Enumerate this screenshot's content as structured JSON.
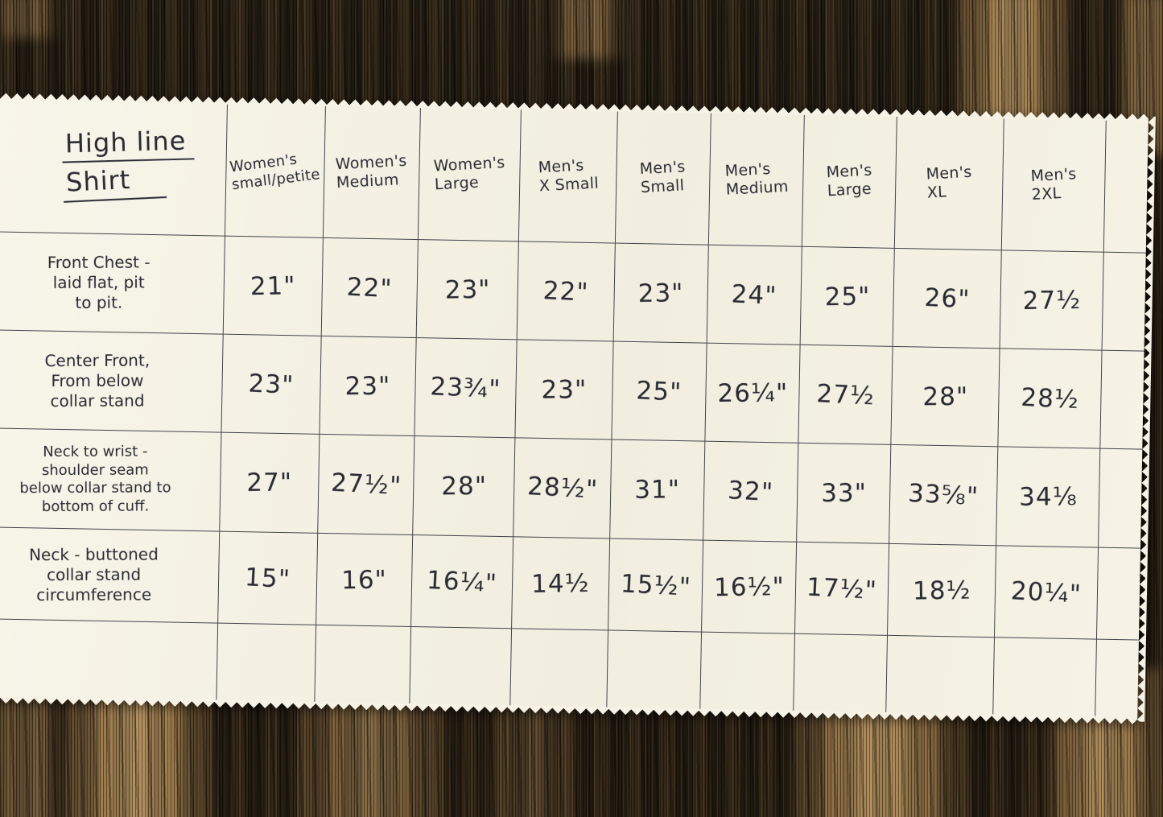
{
  "title": {
    "line1": "High line",
    "line2": "Shirt"
  },
  "columns": [
    {
      "line1": "Women's",
      "line2": "small/petite"
    },
    {
      "line1": "Women's",
      "line2": "Medium"
    },
    {
      "line1": "Women's",
      "line2": "Large"
    },
    {
      "line1": "Men's",
      "line2": "X Small"
    },
    {
      "line1": "Men's",
      "line2": "Small"
    },
    {
      "line1": "Men's",
      "line2": "Medium"
    },
    {
      "line1": "Men's",
      "line2": "Large"
    },
    {
      "line1": "Men's",
      "line2": "XL"
    },
    {
      "line1": "Men's",
      "line2": "2XL"
    }
  ],
  "rows": [
    {
      "label": "Front Chest - laid flat, pit to pit.",
      "label_lines": [
        "Front Chest -",
        "laid flat, pit",
        "to pit."
      ],
      "values": [
        "21\"",
        "22\"",
        "23\"",
        "22\"",
        "23\"",
        "24\"",
        "25\"",
        "26\"",
        "27½"
      ]
    },
    {
      "label": "Center Front, From below collar stand",
      "label_lines": [
        "Center Front,",
        "From below",
        "collar stand"
      ],
      "values": [
        "23\"",
        "23\"",
        "23¾\"",
        "23\"",
        "25\"",
        "26¼\"",
        "27½",
        "28\"",
        "28½"
      ]
    },
    {
      "label": "Neck to wrist - shoulder seam below collar stand to bottom of cuff.",
      "label_lines": [
        "Neck to wrist -",
        "shoulder seam",
        "below collar stand to",
        "bottom of cuff."
      ],
      "values": [
        "27\"",
        "27½\"",
        "28\"",
        "28½\"",
        "31\"",
        "32\"",
        "33\"",
        "33⅝\"",
        "34⅛"
      ]
    },
    {
      "label": "Neck - buttoned collar stand circumference",
      "label_lines": [
        "Neck - buttoned",
        "collar stand",
        "circumference"
      ],
      "values": [
        "15\"",
        "16\"",
        "16¼\"",
        "14½",
        "15½\"",
        "16½\"",
        "17½\"",
        "18½",
        "20¼\""
      ]
    }
  ],
  "chart_data": {
    "type": "table",
    "title": "High line Shirt",
    "columns": [
      "Women's small/petite",
      "Women's Medium",
      "Women's Large",
      "Men's X Small",
      "Men's Small",
      "Men's Medium",
      "Men's Large",
      "Men's XL",
      "Men's 2XL"
    ],
    "row_labels": [
      "Front Chest - laid flat, pit to pit.",
      "Center Front, from below collar stand",
      "Neck to wrist - shoulder seam below collar stand to bottom of cuff.",
      "Neck - buttoned collar stand circumference"
    ],
    "values": [
      [
        "21\"",
        "22\"",
        "23\"",
        "22\"",
        "23\"",
        "24\"",
        "25\"",
        "26\"",
        "27½\""
      ],
      [
        "23\"",
        "23\"",
        "23¾\"",
        "23\"",
        "25\"",
        "26¼\"",
        "27½\"",
        "28\"",
        "28½\""
      ],
      [
        "27\"",
        "27½\"",
        "28\"",
        "28½\"",
        "31\"",
        "32\"",
        "33\"",
        "33⅝\"",
        "34⅛\""
      ],
      [
        "15\"",
        "16\"",
        "16¼\"",
        "14½\"",
        "15½\"",
        "16½\"",
        "17½\"",
        "18½\"",
        "20¼\""
      ]
    ]
  },
  "colors": {
    "paper": "#f6f3e6",
    "ink": "#2a2a33",
    "grid_line": "#43434b",
    "wood_dark": "#1c150c",
    "wood_tan": "#c9a46c"
  }
}
